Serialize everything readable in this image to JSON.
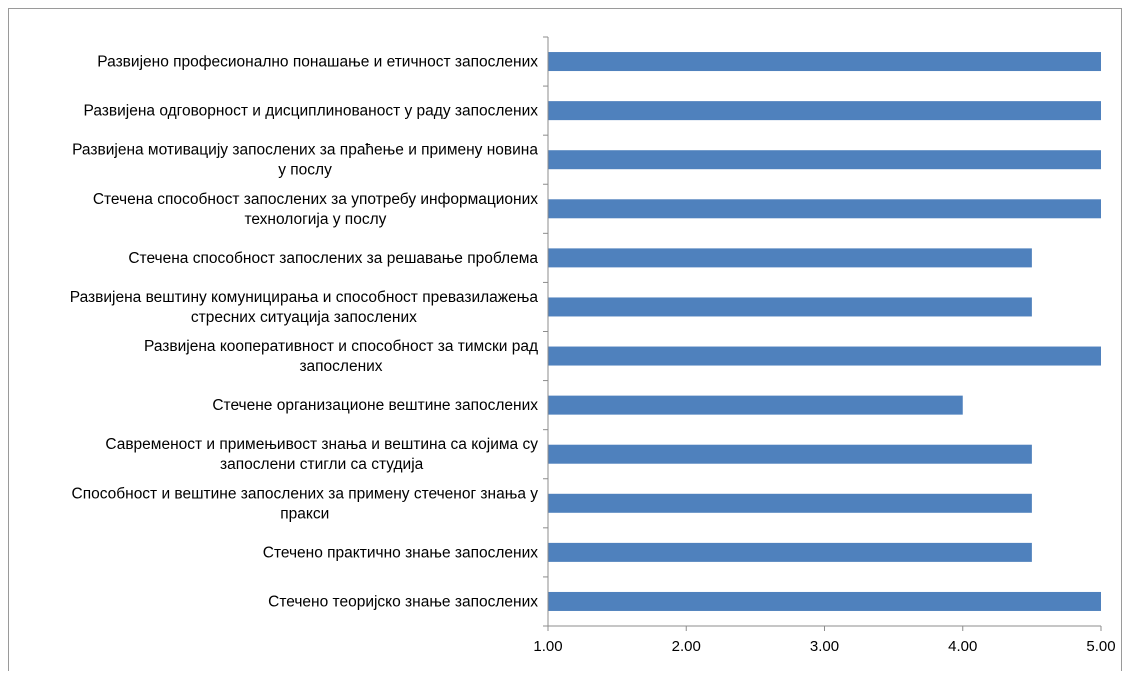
{
  "chart_data": {
    "type": "bar",
    "orientation": "horizontal",
    "title": "",
    "xlabel": "",
    "ylabel": "",
    "xlim": [
      1,
      5
    ],
    "x_ticks": [
      "1.00",
      "2.00",
      "3.00",
      "4.00",
      "5.00"
    ],
    "x_tick_values": [
      1,
      2,
      3,
      4,
      5
    ],
    "grid": false,
    "legend": "none",
    "bar_color": "#4f81bd",
    "categories": [
      [
        "Развијено професионално понашање и етичност запослених"
      ],
      [
        "Развијена одговорност и дисциплинованост у раду запослених"
      ],
      [
        "Развијена мотивацију запослених за праћење и примену новина",
        "у послу"
      ],
      [
        "Стечена способност запослених за употребу информационих",
        "технологија у послу"
      ],
      [
        "Стечена способност запослених за решавање проблема"
      ],
      [
        "Развијена вештину комуницирања и способност превазилажења",
        "стресних ситуација запослених"
      ],
      [
        "Развијена кооперативност и способност за тимски рад",
        "запослених"
      ],
      [
        "Стечене организационе вештине запослених"
      ],
      [
        "Савременост и примењивост знања и вештина са којима су",
        "запослени стигли са студија"
      ],
      [
        "Способност и вештине запослених за примену стеченог знања у",
        "пракси"
      ],
      [
        "Стечено практично знање запослених"
      ],
      [
        "Стечено теоријско знање запослених"
      ]
    ],
    "values": [
      5.0,
      5.0,
      5.0,
      5.0,
      4.5,
      4.5,
      5.0,
      4.0,
      4.5,
      4.5,
      4.5,
      5.0
    ]
  }
}
